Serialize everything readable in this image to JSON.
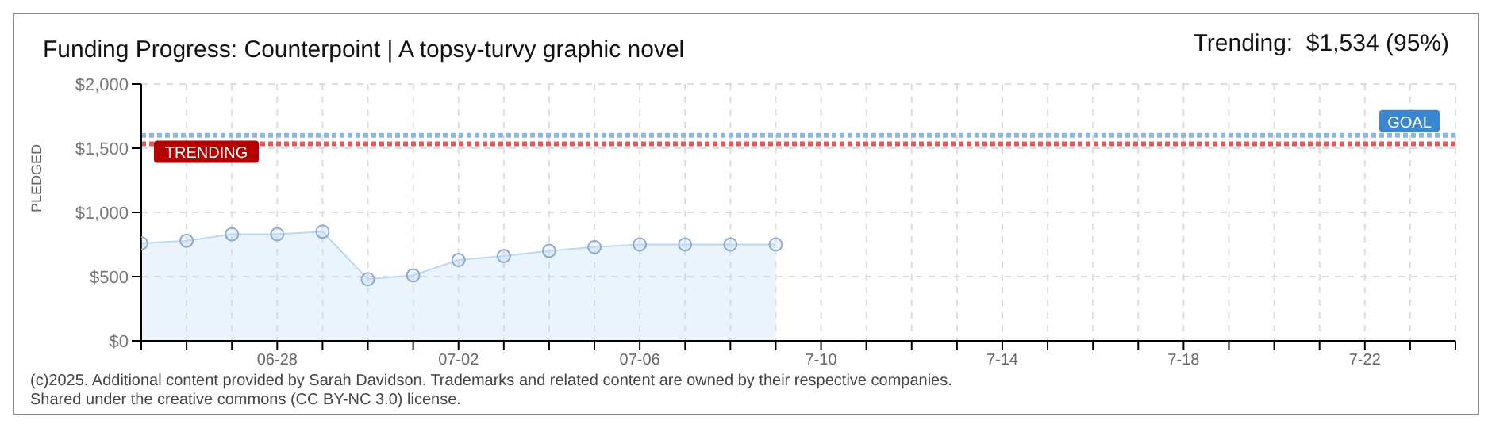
{
  "chart_data": {
    "type": "area",
    "title": "Funding Progress: Counterpoint | A topsy-turvy graphic novel",
    "ylabel": "PLEDGED",
    "annotations": [
      "Trending:  $1,534 (95%)",
      "(c)2025. Additional content provided by Sarah Davidson. Trademarks and related content are owned by their respective companies.",
      "Shared under the creative commons (CC BY-NC 3.0) license."
    ],
    "x": [
      "--06-25",
      "--06-26",
      "--06-27",
      "--06-28",
      "--06-29",
      "--06-30",
      "--07-01",
      "--07-02",
      "--07-03",
      "--07-04",
      "--07-05",
      "--07-06",
      "--07-07",
      "--07-08",
      "--07-09"
    ],
    "series": [
      {
        "color": "#bcd8f5",
        "values": [
          760,
          780,
          830,
          830,
          850,
          480,
          510,
          630,
          660,
          700,
          730,
          750,
          750,
          750,
          750
        ]
      }
    ],
    "xlim": [
      "--06-25",
      "--07-24"
    ],
    "xticks": [
      {
        "value": "--06-25",
        "label": null
      },
      {
        "value": "--06-26",
        "label": null
      },
      {
        "value": "--06-27",
        "label": null
      },
      {
        "value": "--06-28",
        "label": "06-28"
      },
      {
        "value": "--06-29",
        "label": null
      },
      {
        "value": "--06-30",
        "label": null
      },
      {
        "value": "--07-01",
        "label": null
      },
      {
        "value": "--07-02",
        "label": "07-02"
      },
      {
        "value": "--07-03",
        "label": null
      },
      {
        "value": "--07-04",
        "label": null
      },
      {
        "value": "--07-05",
        "label": null
      },
      {
        "value": "--07-06",
        "label": "07-06"
      },
      {
        "value": "--07-07",
        "label": null
      },
      {
        "value": "--07-08",
        "label": null
      },
      {
        "value": "--07-09",
        "label": null
      },
      {
        "value": "--07-10",
        "label": "7-10"
      },
      {
        "value": "--07-11",
        "label": null
      },
      {
        "value": "--07-12",
        "label": null
      },
      {
        "value": "--07-13",
        "label": null
      },
      {
        "value": "--07-14",
        "label": "7-14"
      },
      {
        "value": "--07-15",
        "label": null
      },
      {
        "value": "--07-16",
        "label": null
      },
      {
        "value": "--07-17",
        "label": null
      },
      {
        "value": "--07-18",
        "label": "7-18"
      },
      {
        "value": "--07-19",
        "label": null
      },
      {
        "value": "--07-20",
        "label": null
      },
      {
        "value": "--07-21",
        "label": null
      },
      {
        "value": "--07-22",
        "label": "7-22"
      },
      {
        "value": "--07-23",
        "label": null
      },
      {
        "value": "--07-24",
        "label": null
      }
    ],
    "ylim": [
      0,
      2000
    ],
    "yticks": [
      {
        "value": 0,
        "label": "$0"
      },
      {
        "value": 500,
        "label": "$500"
      },
      {
        "value": 1000,
        "label": "$1,000"
      },
      {
        "value": 1500,
        "label": "$1,500"
      },
      {
        "value": 2000,
        "label": "$2,000"
      }
    ],
    "ref_lines": [
      {
        "axis": "y",
        "value": 1600,
        "label": "GOAL",
        "color": "#8fb8e0",
        "line_style": "dotted"
      },
      {
        "axis": "y",
        "value": 1534,
        "label": "TRENDING",
        "color": "#e05a5a",
        "line_style": "dotted"
      }
    ],
    "grid": true,
    "legend": false,
    "marker": "circle"
  }
}
